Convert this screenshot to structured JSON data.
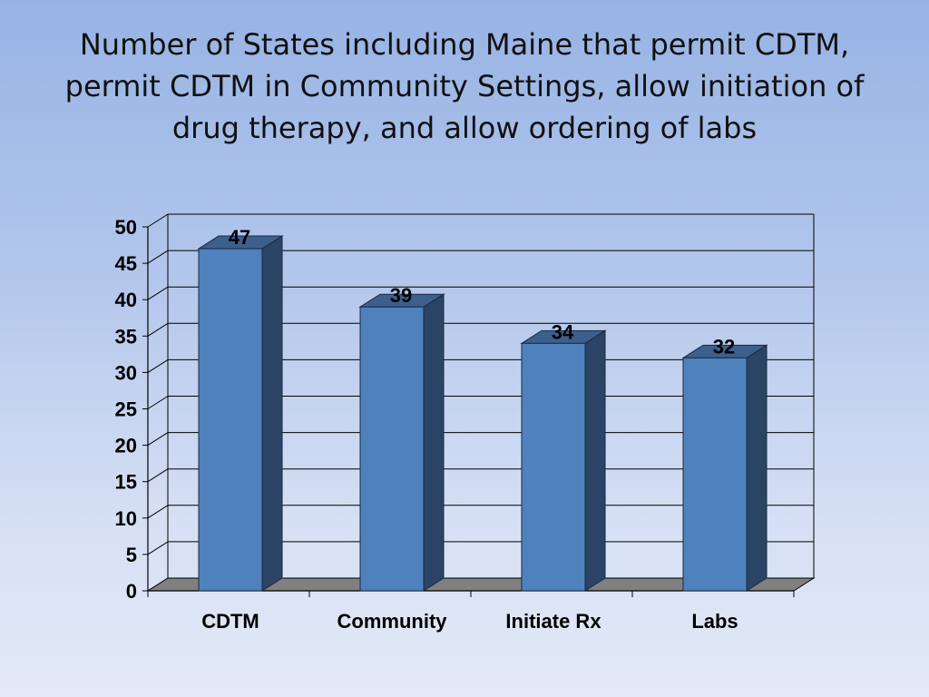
{
  "chart_data": {
    "type": "bar",
    "title": "Number of States including Maine that permit CDTM, permit CDTM in Community Settings, allow initiation of drug therapy, and allow ordering of labs",
    "categories": [
      "CDTM",
      "Community",
      "Initiate Rx",
      "Labs"
    ],
    "values": [
      47,
      39,
      34,
      32
    ],
    "data_labels": [
      "47",
      "39",
      "34",
      "32"
    ],
    "ylim": [
      0,
      50
    ],
    "yticks": [
      0,
      5,
      10,
      15,
      20,
      25,
      30,
      35,
      40,
      45,
      50
    ],
    "xlabel": "",
    "ylabel": "",
    "grid": true,
    "legend": "none",
    "style": "3d-column",
    "colors": {
      "bar_front": "#4f81bd",
      "bar_side": "#2b4466",
      "bar_top": "#3d5f8c",
      "floor": "#808080",
      "gridline": "#000000"
    }
  }
}
